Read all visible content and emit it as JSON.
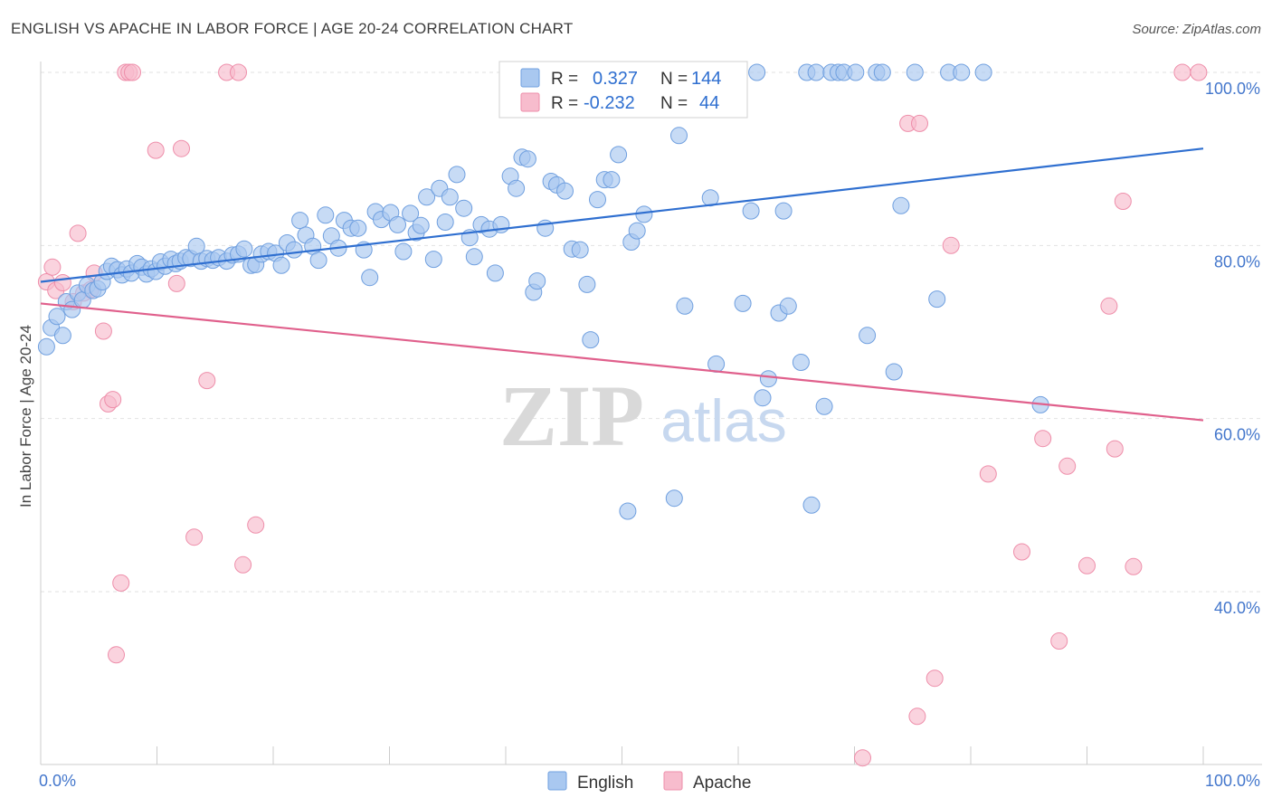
{
  "header": {
    "title": "ENGLISH VS APACHE IN LABOR FORCE | AGE 20-24 CORRELATION CHART",
    "source": "Source: ZipAtlas.com"
  },
  "colors": {
    "english_fill": "#a9c8f0",
    "english_stroke": "#6f9fdf",
    "english_line": "#2f6fd0",
    "apache_fill": "#f7bccd",
    "apache_stroke": "#ee8eaa",
    "apache_line": "#e0608c",
    "tick_color": "#4477cc"
  },
  "chart_data": {
    "type": "scatter",
    "title": "ENGLISH VS APACHE IN LABOR FORCE | AGE 20-24 CORRELATION CHART",
    "xlabel": "",
    "ylabel": "In Labor Force | Age 20-24",
    "xlim": [
      0,
      100
    ],
    "ylim": [
      20,
      104
    ],
    "x_tick_labels": [
      "0.0%",
      "100.0%"
    ],
    "y_ticks": [
      40,
      60,
      80,
      100
    ],
    "y_tick_labels": [
      "40.0%",
      "60.0%",
      "80.0%",
      "100.0%"
    ],
    "grid": true,
    "watermark": {
      "big": "ZIP",
      "small": "atlas"
    },
    "legend": [
      {
        "r_label": "R =",
        "r": "0.327",
        "n_label": "N =",
        "n": "144"
      },
      {
        "r_label": "R =",
        "r": "-0.232",
        "n_label": "N =",
        "n": "44"
      }
    ],
    "series": [
      {
        "name": "English",
        "trend": [
          [
            0,
            75.8
          ],
          [
            100,
            91.2
          ]
        ],
        "points": [
          [
            0.5,
            68.3
          ],
          [
            0.9,
            70.5
          ],
          [
            1.4,
            71.8
          ],
          [
            1.9,
            69.6
          ],
          [
            2.2,
            73.5
          ],
          [
            2.7,
            72.6
          ],
          [
            3.2,
            74.5
          ],
          [
            3.6,
            73.7
          ],
          [
            4.0,
            75.4
          ],
          [
            4.5,
            74.8
          ],
          [
            4.9,
            75.0
          ],
          [
            5.3,
            75.8
          ],
          [
            5.7,
            77.0
          ],
          [
            6.1,
            77.6
          ],
          [
            6.6,
            77.2
          ],
          [
            7.0,
            76.6
          ],
          [
            7.4,
            77.3
          ],
          [
            7.8,
            76.8
          ],
          [
            8.3,
            77.9
          ],
          [
            8.7,
            77.5
          ],
          [
            9.1,
            76.7
          ],
          [
            9.5,
            77.3
          ],
          [
            9.9,
            77.0
          ],
          [
            10.3,
            78.1
          ],
          [
            10.7,
            77.6
          ],
          [
            11.2,
            78.4
          ],
          [
            11.6,
            77.9
          ],
          [
            12.0,
            78.2
          ],
          [
            12.5,
            78.6
          ],
          [
            12.9,
            78.5
          ],
          [
            13.4,
            79.9
          ],
          [
            13.8,
            78.2
          ],
          [
            14.3,
            78.5
          ],
          [
            14.8,
            78.3
          ],
          [
            15.3,
            78.6
          ],
          [
            16.0,
            78.2
          ],
          [
            16.5,
            78.9
          ],
          [
            17.0,
            79.0
          ],
          [
            17.5,
            79.6
          ],
          [
            18.1,
            77.7
          ],
          [
            18.5,
            77.8
          ],
          [
            19.0,
            79.0
          ],
          [
            19.6,
            79.3
          ],
          [
            20.2,
            79.1
          ],
          [
            20.7,
            77.7
          ],
          [
            21.2,
            80.3
          ],
          [
            21.8,
            79.5
          ],
          [
            22.3,
            82.9
          ],
          [
            22.8,
            81.2
          ],
          [
            23.4,
            79.9
          ],
          [
            23.9,
            78.3
          ],
          [
            24.5,
            83.5
          ],
          [
            25.0,
            81.1
          ],
          [
            25.6,
            79.7
          ],
          [
            26.1,
            82.9
          ],
          [
            26.7,
            82.0
          ],
          [
            27.3,
            82.0
          ],
          [
            27.8,
            79.5
          ],
          [
            28.3,
            76.3
          ],
          [
            28.8,
            83.9
          ],
          [
            29.3,
            83.0
          ],
          [
            30.1,
            83.8
          ],
          [
            30.7,
            82.4
          ],
          [
            31.2,
            79.3
          ],
          [
            31.8,
            83.7
          ],
          [
            32.3,
            81.5
          ],
          [
            32.7,
            82.3
          ],
          [
            33.2,
            85.6
          ],
          [
            33.8,
            78.4
          ],
          [
            34.3,
            86.6
          ],
          [
            34.8,
            82.7
          ],
          [
            35.2,
            85.6
          ],
          [
            35.8,
            88.2
          ],
          [
            36.4,
            84.3
          ],
          [
            36.9,
            80.9
          ],
          [
            37.3,
            78.7
          ],
          [
            37.9,
            82.4
          ],
          [
            38.6,
            81.9
          ],
          [
            39.1,
            76.8
          ],
          [
            39.6,
            82.4
          ],
          [
            40.4,
            88.0
          ],
          [
            40.9,
            86.6
          ],
          [
            41.4,
            90.2
          ],
          [
            41.9,
            90.0
          ],
          [
            42.4,
            74.6
          ],
          [
            42.7,
            75.9
          ],
          [
            43.4,
            82.0
          ],
          [
            43.9,
            87.4
          ],
          [
            44.4,
            87.0
          ],
          [
            45.1,
            86.3
          ],
          [
            45.7,
            79.6
          ],
          [
            46.4,
            79.5
          ],
          [
            47.0,
            75.5
          ],
          [
            47.3,
            69.1
          ],
          [
            47.9,
            85.3
          ],
          [
            48.5,
            87.6
          ],
          [
            49.1,
            87.6
          ],
          [
            49.7,
            90.5
          ],
          [
            50.5,
            49.3
          ],
          [
            50.8,
            80.4
          ],
          [
            51.3,
            81.7
          ],
          [
            51.9,
            83.6
          ],
          [
            52.5,
            100.0
          ],
          [
            53.3,
            100.0
          ],
          [
            53.9,
            100.0
          ],
          [
            54.5,
            50.8
          ],
          [
            54.9,
            92.7
          ],
          [
            55.4,
            73.0
          ],
          [
            55.9,
            100.0
          ],
          [
            56.5,
            100.0
          ],
          [
            57.1,
            100.0
          ],
          [
            57.6,
            85.5
          ],
          [
            58.1,
            66.3
          ],
          [
            58.7,
            100.0
          ],
          [
            59.4,
            100.0
          ],
          [
            60.0,
            100.0
          ],
          [
            60.4,
            73.3
          ],
          [
            61.1,
            84.0
          ],
          [
            61.6,
            100.0
          ],
          [
            62.1,
            62.4
          ],
          [
            62.6,
            64.6
          ],
          [
            63.5,
            72.2
          ],
          [
            63.9,
            84.0
          ],
          [
            64.3,
            73.0
          ],
          [
            65.4,
            66.5
          ],
          [
            65.9,
            100.0
          ],
          [
            66.3,
            50.0
          ],
          [
            66.7,
            100.0
          ],
          [
            67.4,
            61.4
          ],
          [
            68.0,
            100.0
          ],
          [
            68.6,
            100.0
          ],
          [
            69.1,
            100.0
          ],
          [
            70.1,
            100.0
          ],
          [
            71.1,
            69.6
          ],
          [
            71.9,
            100.0
          ],
          [
            72.4,
            100.0
          ],
          [
            73.4,
            65.4
          ],
          [
            74.0,
            84.6
          ],
          [
            75.2,
            100.0
          ],
          [
            77.1,
            73.8
          ],
          [
            78.1,
            100.0
          ],
          [
            79.2,
            100.0
          ],
          [
            81.1,
            100.0
          ],
          [
            86.0,
            61.6
          ]
        ]
      },
      {
        "name": "Apache",
        "trend": [
          [
            0,
            73.3
          ],
          [
            100,
            59.8
          ]
        ],
        "points": [
          [
            0.5,
            75.8
          ],
          [
            1.3,
            74.8
          ],
          [
            1.9,
            75.7
          ],
          [
            2.8,
            73.5
          ],
          [
            3.2,
            81.4
          ],
          [
            3.7,
            74.5
          ],
          [
            4.3,
            74.9
          ],
          [
            5.4,
            70.1
          ],
          [
            5.8,
            61.7
          ],
          [
            6.2,
            62.2
          ],
          [
            6.5,
            32.7
          ],
          [
            6.9,
            41.0
          ],
          [
            7.3,
            100.0
          ],
          [
            7.6,
            100.0
          ],
          [
            7.9,
            100.0
          ],
          [
            9.9,
            91.0
          ],
          [
            11.7,
            75.6
          ],
          [
            12.1,
            91.2
          ],
          [
            13.2,
            46.3
          ],
          [
            14.3,
            64.4
          ],
          [
            16.0,
            100.0
          ],
          [
            17.0,
            100.0
          ],
          [
            17.4,
            43.1
          ],
          [
            18.5,
            47.7
          ],
          [
            70.7,
            20.8
          ],
          [
            74.6,
            94.1
          ],
          [
            75.4,
            25.6
          ],
          [
            75.6,
            94.1
          ],
          [
            76.9,
            30.0
          ],
          [
            78.3,
            80.0
          ],
          [
            81.5,
            53.6
          ],
          [
            84.4,
            44.6
          ],
          [
            86.2,
            57.7
          ],
          [
            87.6,
            34.3
          ],
          [
            88.3,
            54.5
          ],
          [
            90.0,
            43.0
          ],
          [
            91.9,
            73.0
          ],
          [
            92.4,
            56.5
          ],
          [
            93.1,
            85.1
          ],
          [
            94.0,
            42.9
          ],
          [
            98.2,
            100.0
          ],
          [
            99.6,
            100.0
          ],
          [
            1.0,
            77.5
          ],
          [
            4.6,
            76.8
          ]
        ]
      }
    ]
  },
  "bottom_legend": {
    "english": "English",
    "apache": "Apache"
  }
}
